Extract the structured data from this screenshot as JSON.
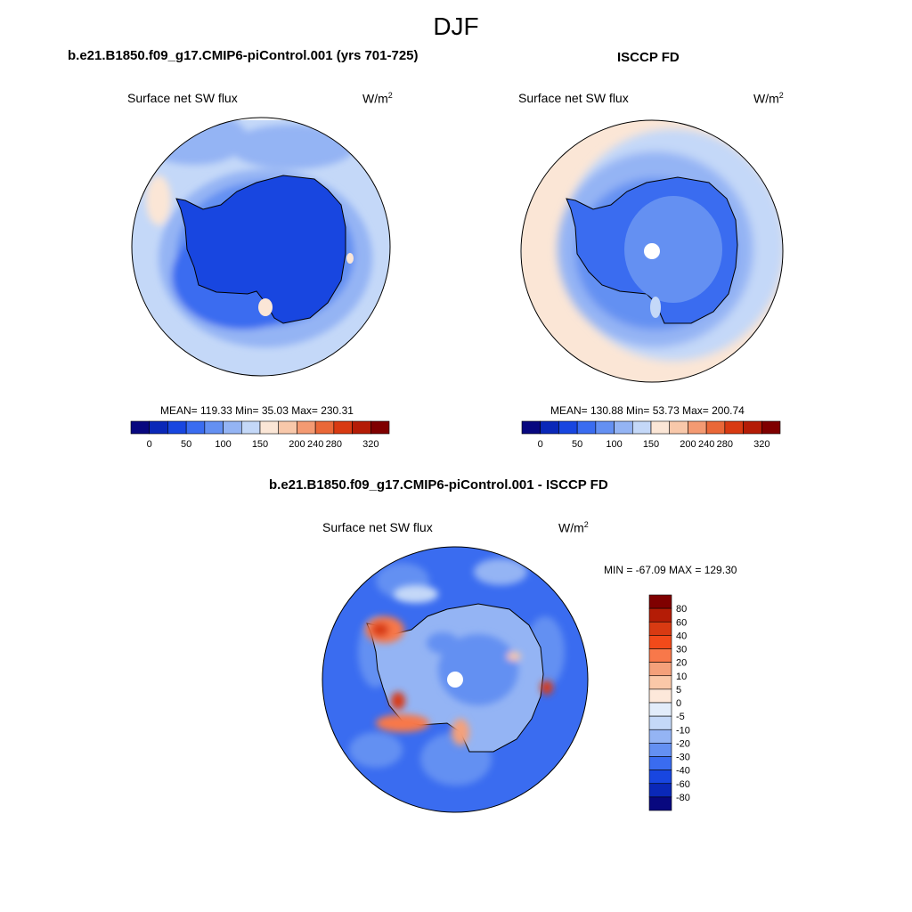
{
  "title": "DJF",
  "panels": [
    {
      "title": "b.e21.B1850.f09_g17.CMIP6-piControl.001 (yrs 701-725)",
      "left_label": "Surface net SW flux",
      "units_base": "W/m",
      "units_exp": "2",
      "stats": "MEAN= 119.33  Min=  35.03  Max= 230.31"
    },
    {
      "title": "ISCCP FD",
      "left_label": "Surface net SW flux",
      "units_base": "W/m",
      "units_exp": "2",
      "stats": "MEAN= 130.88  Min=  53.73  Max= 200.74"
    },
    {
      "title": "b.e21.B1850.f09_g17.CMIP6-piControl.001 - ISCCP FD",
      "left_label": "Surface net SW flux",
      "units_base": "W/m",
      "units_exp": "2",
      "stats": "MIN = -67.09 MAX = 129.30"
    }
  ],
  "colorbars": {
    "abs_colors": [
      "#08087f",
      "#0a28b8",
      "#1846e0",
      "#3a6cf0",
      "#6490f2",
      "#94b4f4",
      "#c4d8f8",
      "#fbe6d6",
      "#f8c8aa",
      "#f49a72",
      "#ea6838",
      "#d83a12",
      "#b41c06",
      "#7f0000"
    ],
    "abs_labels": [
      "0",
      "50",
      "100",
      "150",
      "200",
      "240",
      "280",
      "320"
    ],
    "diff_colors": [
      "#7f0000",
      "#b41c06",
      "#d83a12",
      "#f24a1a",
      "#f8784a",
      "#f4a07a",
      "#fac8a8",
      "#fde8da",
      "#e2ecfa",
      "#c4d8f8",
      "#94b4f4",
      "#6490f2",
      "#3a6cf0",
      "#1846e0",
      "#0a28b8",
      "#08087f"
    ],
    "diff_labels": [
      "80",
      "60",
      "40",
      "30",
      "20",
      "10",
      "5",
      "0",
      "-5",
      "-10",
      "-20",
      "-30",
      "-40",
      "-60",
      "-80"
    ]
  },
  "chart_data": [
    {
      "type": "heatmap",
      "title": "b.e21.B1850.f09_g17.CMIP6-piControl.001 (yrs 701-725)",
      "variable": "Surface net SW flux",
      "units": "W/m2",
      "projection": "south polar stereographic",
      "season": "DJF",
      "mean": 119.33,
      "min": 35.03,
      "max": 230.31,
      "levels": [
        0,
        25,
        50,
        75,
        100,
        125,
        150,
        175,
        200,
        220,
        240,
        260,
        280,
        300,
        320
      ]
    },
    {
      "type": "heatmap",
      "title": "ISCCP FD",
      "variable": "Surface net SW flux",
      "units": "W/m2",
      "projection": "south polar stereographic",
      "season": "DJF",
      "mean": 130.88,
      "min": 53.73,
      "max": 200.74,
      "levels": [
        0,
        25,
        50,
        75,
        100,
        125,
        150,
        175,
        200,
        220,
        240,
        260,
        280,
        300,
        320
      ]
    },
    {
      "type": "heatmap",
      "title": "b.e21.B1850.f09_g17.CMIP6-piControl.001 - ISCCP FD",
      "variable": "Surface net SW flux",
      "units": "W/m2",
      "projection": "south polar stereographic",
      "season": "DJF",
      "min": -67.09,
      "max": 129.3,
      "levels": [
        -80,
        -60,
        -40,
        -30,
        -20,
        -10,
        -5,
        0,
        5,
        10,
        20,
        30,
        40,
        60,
        80
      ]
    }
  ]
}
